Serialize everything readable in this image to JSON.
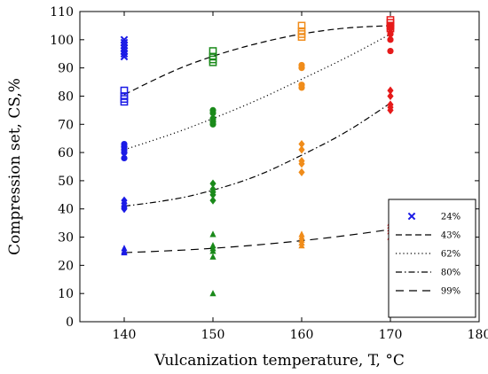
{
  "chart_data": {
    "type": "scatter",
    "xlabel": "Vulcanization temperature, T, °C",
    "ylabel": "Compression set, CS,%",
    "xlim": [
      135,
      180
    ],
    "ylim": [
      0,
      110
    ],
    "xticks": [
      "140",
      "150",
      "160",
      "170",
      "180"
    ],
    "yticks": [
      "0",
      "10",
      "20",
      "30",
      "40",
      "50",
      "60",
      "70",
      "80",
      "90",
      "100",
      "110"
    ],
    "grid": false,
    "legend_position": "bottom-right",
    "legend": [
      {
        "label": "24%",
        "marker": "x-cross",
        "line": "none"
      },
      {
        "label": "43%",
        "marker": "none",
        "line": "dashed"
      },
      {
        "label": "62%",
        "marker": "none",
        "line": "dotted"
      },
      {
        "label": "80%",
        "marker": "none",
        "line": "dash-dot"
      },
      {
        "label": "99%",
        "marker": "none",
        "line": "loosely-dashed"
      }
    ],
    "colors": {
      "140": "#1a1ae6",
      "150": "#1a8a1a",
      "160": "#f08c1a",
      "170": "#e61a1a"
    },
    "series": [
      {
        "marker": "cross",
        "x": [
          140,
          140,
          140,
          140,
          140,
          140,
          140
        ],
        "y": [
          100,
          99,
          98,
          97,
          96,
          95,
          94
        ]
      },
      {
        "marker": "square",
        "x": [
          140,
          140,
          140,
          140,
          150,
          150,
          150,
          150,
          160,
          160,
          160,
          160,
          170,
          170,
          170,
          170
        ],
        "y": [
          82,
          80,
          79,
          78,
          96,
          94,
          93,
          92,
          105,
          103,
          102,
          101,
          107,
          106,
          105,
          104
        ]
      },
      {
        "marker": "circle",
        "x": [
          140,
          140,
          140,
          140,
          140,
          150,
          150,
          150,
          150,
          150,
          160,
          160,
          160,
          160,
          170,
          170,
          170,
          170,
          170
        ],
        "y": [
          63,
          62,
          61,
          60,
          58,
          75,
          74,
          72,
          71,
          70,
          91,
          90,
          84,
          83,
          105,
          104,
          102,
          100,
          96
        ]
      },
      {
        "marker": "diamond",
        "x": [
          140,
          140,
          140,
          140,
          140,
          150,
          150,
          150,
          150,
          150,
          160,
          160,
          160,
          160,
          160,
          170,
          170,
          170,
          170,
          170
        ],
        "y": [
          43,
          42,
          41,
          40.5,
          40,
          49,
          47,
          46,
          45,
          43,
          63,
          61,
          57,
          56,
          53,
          82,
          80,
          77,
          76,
          75
        ]
      },
      {
        "marker": "triangle",
        "x": [
          140,
          140,
          140,
          150,
          150,
          150,
          150,
          150,
          150,
          160,
          160,
          160,
          160,
          160,
          170,
          170,
          170,
          170,
          170
        ],
        "y": [
          26,
          25,
          24.5,
          31,
          27,
          26,
          25,
          23,
          10,
          31,
          30,
          29,
          28,
          27,
          35,
          34,
          33,
          32,
          30
        ]
      }
    ],
    "fits": [
      {
        "style": "dashed",
        "x": [
          140,
          145,
          150,
          155,
          160,
          165,
          170
        ],
        "y": [
          80.5,
          88.5,
          94.3,
          98.8,
          102.2,
          104.3,
          105
        ]
      },
      {
        "style": "dotted",
        "x": [
          140,
          145,
          150,
          155,
          160,
          165,
          170
        ],
        "y": [
          61,
          66,
          72,
          78.5,
          86,
          93.5,
          102
        ]
      },
      {
        "style": "dash-dot",
        "x": [
          140,
          145,
          150,
          155,
          160,
          165,
          170
        ],
        "y": [
          41,
          42.8,
          46.5,
          51.5,
          59,
          67,
          77.5
        ]
      },
      {
        "style": "loosely-dashed",
        "x": [
          140,
          145,
          150,
          155,
          160,
          165,
          170
        ],
        "y": [
          24.5,
          25.1,
          26,
          27.2,
          28.7,
          30.5,
          32.7
        ]
      }
    ]
  }
}
